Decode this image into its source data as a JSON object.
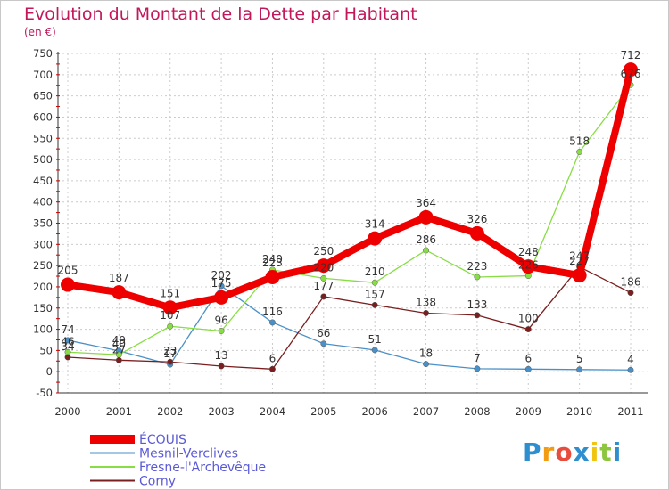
{
  "title": "Evolution du Montant de la Dette par Habitant",
  "subtitle": "(en €)",
  "logo": {
    "text": "Proxiti",
    "letters": [
      "P",
      "r",
      "o",
      "x",
      "i",
      "t",
      "i"
    ],
    "colors": [
      "#2e8ece",
      "#f39c12",
      "#e74c3c",
      "#2e8ece",
      "#f1c40f",
      "#8dc63f",
      "#2e8ece"
    ]
  },
  "chart_data": {
    "type": "line",
    "x": [
      "2000",
      "2001",
      "2002",
      "2003",
      "2004",
      "2005",
      "2006",
      "2007",
      "2008",
      "2009",
      "2010",
      "2011"
    ],
    "ylim": [
      -50,
      750
    ],
    "yticks": [
      -50,
      0,
      50,
      100,
      150,
      200,
      250,
      300,
      350,
      400,
      450,
      500,
      550,
      600,
      650,
      700,
      750
    ],
    "grid": true,
    "legend_position": "bottom-left",
    "series": [
      {
        "name": "ÉCOUIS",
        "color": "#ee0000",
        "width": 8,
        "marker": 8,
        "values": [
          205,
          187,
          151,
          175,
          223,
          250,
          314,
          364,
          326,
          248,
          227,
          712
        ],
        "labels": [
          "205",
          "187",
          "151",
          "175",
          "223",
          "250",
          "314",
          "364",
          "326",
          "248",
          "227",
          "712"
        ]
      },
      {
        "name": "Mesnil-Verclives",
        "color": "#4a90c8",
        "width": 1.3,
        "marker": 3.2,
        "values": [
          74,
          49,
          17,
          202,
          116,
          66,
          51,
          18,
          7,
          6,
          5,
          4
        ],
        "labels": [
          "74",
          "49",
          "17",
          "202",
          "116",
          "66",
          "51",
          "18",
          "7",
          "6",
          "5",
          "4"
        ]
      },
      {
        "name": "Fresne-l'Archevêque",
        "color": "#88dd44",
        "width": 1.3,
        "marker": 3.2,
        "values": [
          46,
          40,
          107,
          96,
          240,
          220,
          210,
          286,
          223,
          226,
          518,
          676
        ],
        "labels": [
          "46",
          "40",
          "107",
          "96",
          "240",
          "220",
          "210",
          "286",
          "223",
          "226",
          "518",
          "676"
        ]
      },
      {
        "name": "Corny",
        "color": "#7a1f1f",
        "width": 1.3,
        "marker": 3.2,
        "values": [
          34,
          27,
          23,
          13,
          6,
          177,
          157,
          138,
          133,
          100,
          247,
          186
        ],
        "labels": [
          "34",
          "27",
          "23",
          "13",
          "6",
          "177",
          "157",
          "138",
          "133",
          "100",
          "247",
          "186"
        ]
      }
    ]
  }
}
